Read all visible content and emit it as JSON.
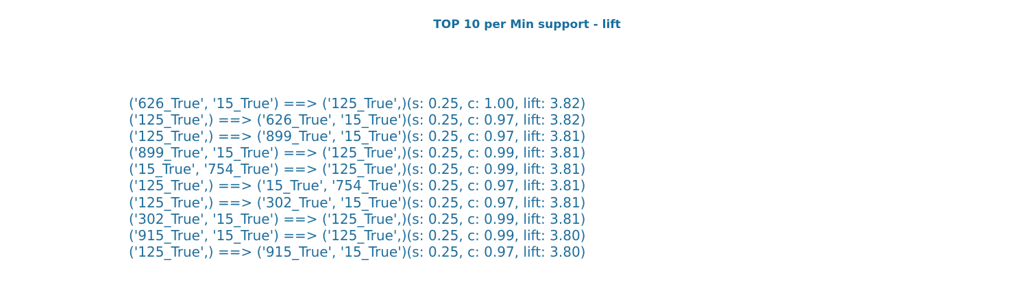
{
  "chart_data": {
    "type": "table",
    "title": "TOP 10 per Min support - lift",
    "rows": [
      "('626_True', '15_True') ==> ('125_True',)(s: 0.25, c: 1.00, lift: 3.82)",
      "('125_True',) ==> ('626_True', '15_True')(s: 0.25, c: 0.97, lift: 3.82)",
      "('125_True',) ==> ('899_True', '15_True')(s: 0.25, c: 0.97, lift: 3.81)",
      "('899_True', '15_True') ==> ('125_True',)(s: 0.25, c: 0.99, lift: 3.81)",
      "('15_True', '754_True') ==> ('125_True',)(s: 0.25, c: 0.99, lift: 3.81)",
      "('125_True',) ==> ('15_True', '754_True')(s: 0.25, c: 0.97, lift: 3.81)",
      "('125_True',) ==> ('302_True', '15_True')(s: 0.25, c: 0.97, lift: 3.81)",
      "('302_True', '15_True') ==> ('125_True',)(s: 0.25, c: 0.99, lift: 3.81)",
      "('915_True', '15_True') ==> ('125_True',)(s: 0.25, c: 0.99, lift: 3.80)",
      "('125_True',) ==> ('915_True', '15_True')(s: 0.25, c: 0.97, lift: 3.80)"
    ],
    "grid": false,
    "text_color": "#1f6e9c",
    "title_color": "#1a6e9e"
  }
}
